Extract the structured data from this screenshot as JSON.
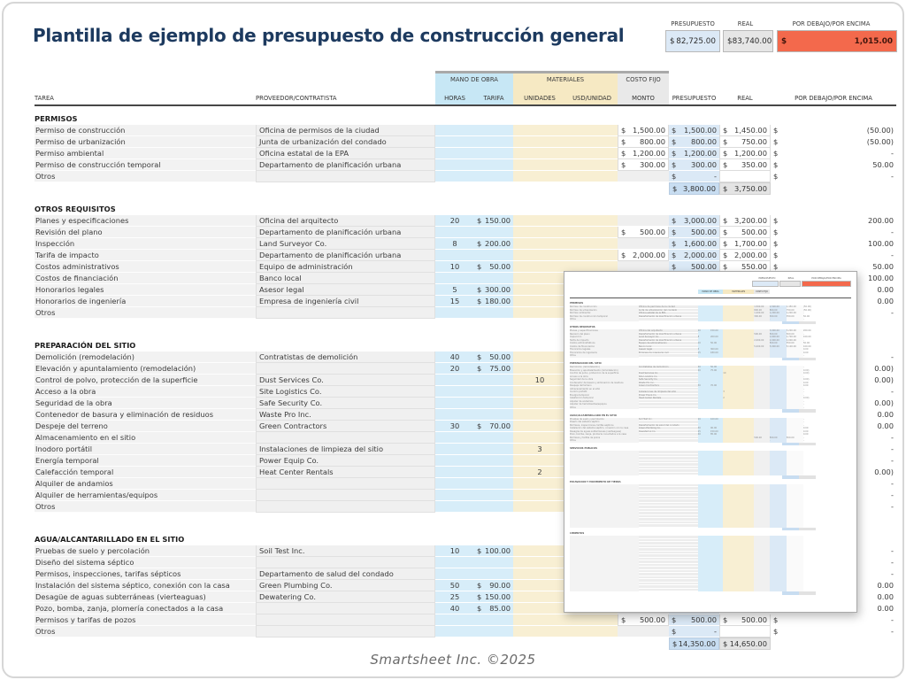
{
  "title": "Plantilla de ejemplo de presupuesto de construcción general",
  "footer": "Smartsheet Inc. ©2025",
  "colors": {
    "title_navy": "#1d3a5f",
    "labor_blue": "#c7e7f5",
    "materials_tan": "#f6e9c3",
    "fixed_gray": "#e9e9e9",
    "budget_blue": "#dbe9f6",
    "variance_orange": "#f3694c"
  },
  "summary": {
    "labels": [
      "PRESUPUESTO",
      "REAL",
      "POR DEBAJO/POR ENCIMA"
    ],
    "budget": {
      "d": "$",
      "v": "82,725.00"
    },
    "real": {
      "d": "$",
      "v": "83,740.00"
    },
    "variance": {
      "d": "$",
      "v": "1,015.00"
    }
  },
  "table": {
    "group_headers": [
      {
        "label": "MANO DE OBRA"
      },
      {
        "label": "MATERIALES"
      },
      {
        "label": "COSTO FIJO"
      }
    ],
    "columns": [
      "TAREA",
      "PROVEEDOR/CONTRATISTA",
      "HORAS",
      "TARIFA",
      "UNIDADES",
      "USD/UNIDAD",
      "MONTO",
      "PRESUPUESTO",
      "REAL",
      "POR DEBAJO/POR ENCIMA"
    ],
    "sections": [
      {
        "name": "PERMISOS",
        "rows": [
          {
            "task": "Permiso de construcción",
            "vendor": "Oficina de permisos de la ciudad",
            "amount": [
              "$",
              "1,500.00"
            ],
            "budget": [
              "$",
              "1,500.00"
            ],
            "real": [
              "$",
              "1,450.00"
            ],
            "diff": [
              "$",
              "(50.00)"
            ]
          },
          {
            "task": "Permiso de urbanización",
            "vendor": "Junta de urbanización del condado",
            "amount": [
              "$",
              "800.00"
            ],
            "budget": [
              "$",
              "800.00"
            ],
            "real": [
              "$",
              "750.00"
            ],
            "diff": [
              "$",
              "(50.00)"
            ]
          },
          {
            "task": "Permiso ambiental",
            "vendor": "Oficina estatal de la EPA",
            "amount": [
              "$",
              "1,200.00"
            ],
            "budget": [
              "$",
              "1,200.00"
            ],
            "real": [
              "$",
              "1,200.00"
            ],
            "diff": [
              "$",
              "-"
            ]
          },
          {
            "task": "Permiso de construcción temporal",
            "vendor": "Departamento de planificación urbana",
            "amount": [
              "$",
              "300.00"
            ],
            "budget": [
              "$",
              "300.00"
            ],
            "real": [
              "$",
              "350.00"
            ],
            "diff": [
              "$",
              "50.00"
            ]
          },
          {
            "task": "Otros",
            "vendor": "",
            "budget": [
              "$",
              "-"
            ],
            "real": [
              "",
              ""
            ],
            "diff": [
              "$",
              "-"
            ]
          }
        ],
        "subtotal": {
          "budget": [
            "$",
            "3,800.00"
          ],
          "real": [
            "$",
            "3,750.00"
          ]
        }
      },
      {
        "name": "OTROS REQUISITOS",
        "rows": [
          {
            "task": "Planes y especificaciones",
            "vendor": "Oficina del arquitecto",
            "hours": "20",
            "rate": [
              "$",
              "150.00"
            ],
            "budget": [
              "$",
              "3,000.00"
            ],
            "real": [
              "$",
              "3,200.00"
            ],
            "diff": [
              "$",
              "200.00"
            ]
          },
          {
            "task": "Revisión del plano",
            "vendor": "Departamento de planificación urbana",
            "amount": [
              "$",
              "500.00"
            ],
            "budget": [
              "$",
              "500.00"
            ],
            "real": [
              "$",
              "500.00"
            ],
            "diff": [
              "$",
              "-"
            ]
          },
          {
            "task": "Inspección",
            "vendor": "Land Surveyor Co.",
            "hours": "8",
            "rate": [
              "$",
              "200.00"
            ],
            "budget": [
              "$",
              "1,600.00"
            ],
            "real": [
              "$",
              "1,700.00"
            ],
            "diff": [
              "$",
              "100.00"
            ]
          },
          {
            "task": "Tarifa de impacto",
            "vendor": "Departamento de planificación urbana",
            "amount": [
              "$",
              "2,000.00"
            ],
            "budget": [
              "$",
              "2,000.00"
            ],
            "real": [
              "$",
              "2,000.00"
            ],
            "diff": [
              "$",
              "-"
            ]
          },
          {
            "task": "Costos administrativos",
            "vendor": "Equipo de administración",
            "hours": "10",
            "rate": [
              "$",
              "50.00"
            ],
            "budget": [
              "$",
              "500.00"
            ],
            "real": [
              "$",
              "550.00"
            ],
            "diff": [
              "$",
              "50.00"
            ]
          },
          {
            "task": "Costos de financiación",
            "vendor": "Banco local",
            "amount": [
              "$",
              "5,000.00"
            ],
            "budget": [
              "$",
              "5,000.00"
            ],
            "real": [
              "$",
              "5,100.00"
            ],
            "diff": [
              "$",
              "100.00"
            ]
          },
          {
            "task": "Honorarios legales",
            "vendor": "Asesor legal",
            "hours": "5",
            "rate": [
              "$",
              "300.00"
            ],
            "diff": [
              "",
              "0.00"
            ]
          },
          {
            "task": "Honorarios de ingeniería",
            "vendor": "Empresa de ingeniería civil",
            "hours": "15",
            "rate": [
              "$",
              "180.00"
            ],
            "diff": [
              "",
              "0.00"
            ]
          },
          {
            "task": "Otros",
            "vendor": "",
            "diff": [
              "",
              "-"
            ]
          }
        ],
        "subtotal": {
          "budget": [
            "",
            ""
          ],
          "real": [
            "",
            ""
          ]
        }
      },
      {
        "name": "PREPARACIÓN DEL SITIO",
        "rows": [
          {
            "task": "Demolición (remodelación)",
            "vendor": "Contratistas de demolición",
            "hours": "40",
            "rate": [
              "$",
              "50.00"
            ],
            "diff": [
              "",
              "-"
            ]
          },
          {
            "task": "Elevación y apuntalamiento (remodelación)",
            "vendor": "",
            "hours": "20",
            "rate": [
              "$",
              "75.00"
            ],
            "diff": [
              "",
              "0.00)"
            ]
          },
          {
            "task": "Control de polvo, protección de la superficie",
            "vendor": "Dust Services Co.",
            "units": "10",
            "diff": [
              "",
              "0.00)"
            ]
          },
          {
            "task": "Acceso a la obra",
            "vendor": "Site Logistics Co.",
            "diff": [
              "",
              "-"
            ]
          },
          {
            "task": "Seguridad de la obra",
            "vendor": "Safe Security Co.",
            "diff": [
              "",
              "0.00)"
            ]
          },
          {
            "task": "Contenedor de basura y eliminación de residuos",
            "vendor": "Waste Pro Inc.",
            "diff": [
              "",
              "0.00"
            ]
          },
          {
            "task": "Despeje del terreno",
            "vendor": "Green Contractors",
            "hours": "30",
            "rate": [
              "$",
              "70.00"
            ],
            "diff": [
              "",
              "0.00"
            ]
          },
          {
            "task": "Almacenamiento en el sitio",
            "vendor": "",
            "diff": [
              "",
              "-"
            ]
          },
          {
            "task": "Inodoro portátil",
            "vendor": "Instalaciones de limpieza del sitio",
            "units": "3",
            "diff": [
              "",
              "-"
            ]
          },
          {
            "task": "Energía temporal",
            "vendor": "Power Equip Co.",
            "diff": [
              "",
              "-"
            ]
          },
          {
            "task": "Calefacción temporal",
            "vendor": "Heat Center Rentals",
            "units": "2",
            "diff": [
              "",
              "0.00)"
            ]
          },
          {
            "task": "Alquiler de andamios",
            "vendor": "",
            "diff": [
              "",
              "-"
            ]
          },
          {
            "task": "Alquiler de herramientas/equipos",
            "vendor": "",
            "diff": [
              "",
              "-"
            ]
          },
          {
            "task": "Otros",
            "vendor": "",
            "diff": [
              "",
              "-"
            ]
          }
        ],
        "subtotal": {
          "budget": [
            "",
            ""
          ],
          "real": [
            "",
            ""
          ]
        }
      },
      {
        "name": "AGUA/ALCANTARILLADO EN EL SITIO",
        "rows": [
          {
            "task": "Pruebas de suelo y percolación",
            "vendor": "Soil Test Inc.",
            "hours": "10",
            "rate": [
              "$",
              "100.00"
            ],
            "diff": [
              "",
              "-"
            ]
          },
          {
            "task": "Diseño del sistema séptico",
            "vendor": "",
            "diff": [
              "",
              "-"
            ]
          },
          {
            "task": "Permisos, inspecciones, tarifas sépticos",
            "vendor": "Departamento de salud del condado",
            "diff": [
              "",
              "-"
            ]
          },
          {
            "task": "Instalación del sistema séptico, conexión con la casa",
            "vendor": "Green Plumbing Co.",
            "hours": "50",
            "rate": [
              "$",
              "90.00"
            ],
            "diff": [
              "",
              "0.00"
            ]
          },
          {
            "task": "Desagüe de aguas subterráneas (vierteaguas)",
            "vendor": "Dewatering Co.",
            "hours": "25",
            "rate": [
              "$",
              "150.00"
            ],
            "diff": [
              "",
              "0.00"
            ]
          },
          {
            "task": "Pozo, bomba, zanja, plomería conectados a la casa",
            "vendor": "",
            "hours": "40",
            "rate": [
              "$",
              "85.00"
            ],
            "diff": [
              "",
              "0.00"
            ]
          },
          {
            "task": "Permisos y tarifas de pozos",
            "vendor": "",
            "amount": [
              "$",
              "500.00"
            ],
            "budget": [
              "$",
              "500.00"
            ],
            "real": [
              "$",
              "500.00"
            ],
            "diff": [
              "$",
              "-"
            ]
          },
          {
            "task": "Otros",
            "vendor": "",
            "budget": [
              "$",
              "-"
            ],
            "real": [
              "",
              ""
            ],
            "diff": [
              "$",
              "-"
            ]
          }
        ],
        "subtotal": {
          "budget": [
            "$",
            "14,350.00"
          ],
          "real": [
            "$",
            "14,650.00"
          ]
        }
      }
    ]
  },
  "preview": {
    "sections": [
      {
        "label": "PERMISOS",
        "rows": 5
      },
      {
        "label": "OTROS REQUISITOS",
        "rows": 9
      },
      {
        "label": "PREPARACIÓN DEL SITIO",
        "rows": 14
      },
      {
        "label": "AGUA/ALCANTARILLADO EN EL SITIO",
        "rows": 8
      },
      {
        "label": "SERVICIOS PÚBLICOS",
        "rows": 8
      },
      {
        "label": "EXCAVACIÓN Y MOVIMIENTO DE TIERRA",
        "rows": 14
      },
      {
        "label": "CIMIENTOS",
        "rows": 18
      }
    ]
  }
}
